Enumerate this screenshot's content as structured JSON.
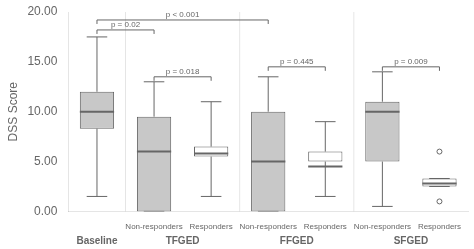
{
  "chart_data": {
    "type": "box",
    "ylabel": "DSS Score",
    "categories": [
      null,
      "Non-responders",
      "Responders",
      "Non-responders",
      "Responders",
      "Non-responders",
      "Responders"
    ],
    "groups": [
      "Baseline",
      "TFGED",
      "TFGED",
      "FFGED",
      "FFGED",
      "SFGED",
      "SFGED"
    ],
    "q1": [
      8.3,
      0.0,
      5.5,
      0.0,
      5.0,
      5.0,
      2.5
    ],
    "median": [
      10.0,
      6.0,
      5.8,
      5.0,
      4.5,
      10.0,
      2.8
    ],
    "q3": [
      12.0,
      9.5,
      6.5,
      10.0,
      6.0,
      11.0,
      3.3
    ],
    "whisker_low": [
      1.5,
      0.0,
      1.5,
      0.0,
      1.5,
      0.5,
      2.5
    ],
    "whisker_high": [
      17.5,
      13.0,
      11.0,
      13.5,
      9.0,
      14.0,
      3.3
    ],
    "outliers": [
      [],
      [],
      [],
      [],
      [],
      [],
      [
        1.0,
        6.0
      ]
    ],
    "colors": [
      "#c8c8c8",
      "#c8c8c8",
      "#ffffff",
      "#c8c8c8",
      "#ffffff",
      "#c8c8c8",
      "#ffffff"
    ],
    "annotations": [
      {
        "text": "p = 0.02",
        "y": 18.2,
        "between": [
          0,
          1
        ]
      },
      {
        "text": "p < 0.001",
        "y": 19.2,
        "between": [
          0,
          3
        ]
      },
      {
        "text": "p = 0.018",
        "y": 13.5,
        "between": [
          1,
          2
        ]
      },
      {
        "text": "p = 0.445",
        "y": 14.5,
        "between": [
          3,
          4
        ]
      },
      {
        "text": "p = 0.009",
        "y": 14.5,
        "between": [
          5,
          6
        ]
      }
    ],
    "ylim": [
      0,
      20
    ],
    "yticks": [
      {
        "value": 0,
        "label": "0.00"
      },
      {
        "value": 5,
        "label": "5.00"
      },
      {
        "value": 10,
        "label": "10.00"
      },
      {
        "value": 15,
        "label": "15.00"
      },
      {
        "value": 20,
        "label": "20.00"
      }
    ],
    "grid": false
  }
}
